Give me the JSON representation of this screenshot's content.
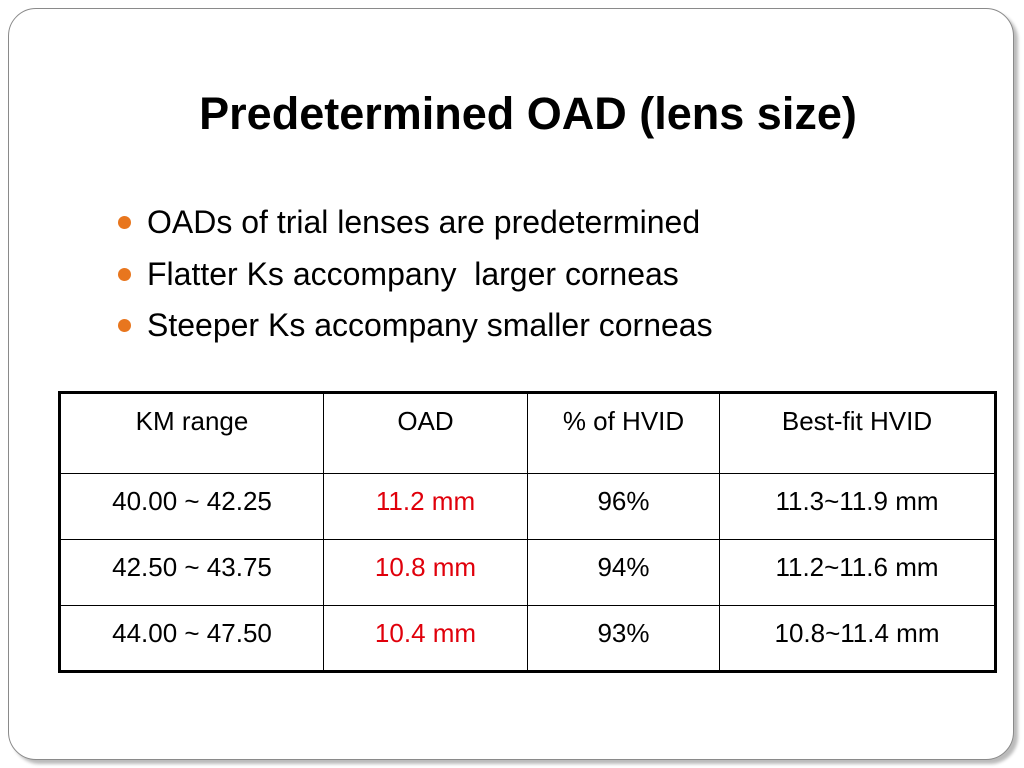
{
  "header": {
    "title": "Predetermined OAD (lens size)"
  },
  "bullets": [
    "OADs of trial lenses are predetermined",
    "Flatter Ks accompany  larger corneas",
    "Steeper Ks accompany smaller corneas"
  ],
  "table": {
    "columns": [
      "KM range",
      "OAD",
      "% of HVID",
      "Best-fit HVID"
    ],
    "rows": [
      [
        "40.00 ~ 42.25",
        "11.2 mm",
        "96%",
        "11.3~11.9 mm"
      ],
      [
        "42.50 ~ 43.75",
        "10.8 mm",
        "94%",
        "11.2~11.6 mm"
      ],
      [
        "44.00 ~ 47.50",
        "10.4 mm",
        "93%",
        "10.8~11.4 mm"
      ]
    ]
  }
}
